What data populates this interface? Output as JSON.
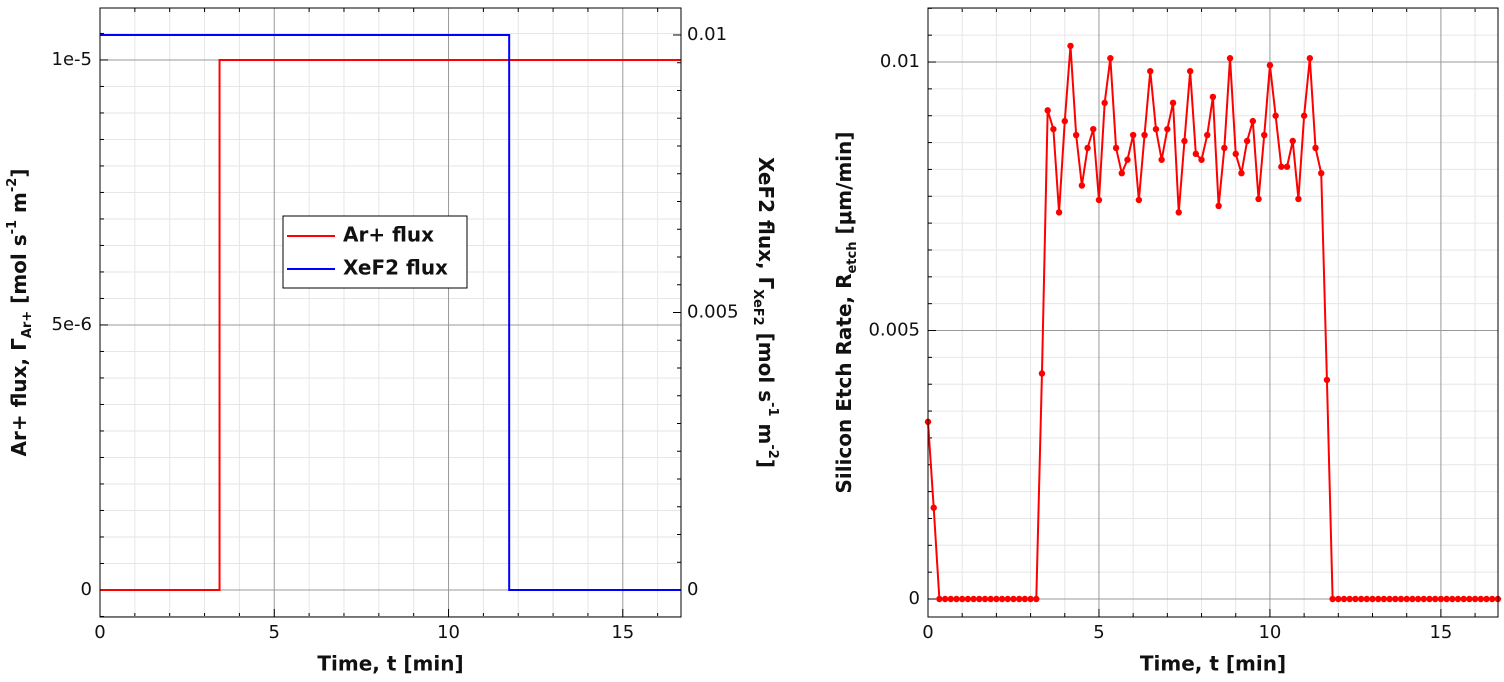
{
  "chart_data": [
    {
      "type": "line",
      "xlabel": "Time, t [min]",
      "ylabel": [
        {
          "text": "Ar+ flux, Γ"
        },
        {
          "text": "Ar+",
          "sub": true
        },
        {
          "text": " [mol s"
        },
        {
          "text": "-1",
          "sup": true
        },
        {
          "text": " m"
        },
        {
          "text": "-2",
          "sup": true
        },
        {
          "text": "]"
        }
      ],
      "y2label": [
        {
          "text": "XeF2 flux, Γ"
        },
        {
          "text": "XeF2",
          "sub": true
        },
        {
          "text": " [mol s"
        },
        {
          "text": "-1",
          "sup": true
        },
        {
          "text": " m"
        },
        {
          "text": "-2",
          "sup": true
        },
        {
          "text": "]"
        }
      ],
      "xlim": [
        0,
        16.67
      ],
      "xticks": [
        0,
        5,
        10,
        15
      ],
      "ylim": [
        -5.1e-07,
        1.098e-05
      ],
      "yticks": [
        0,
        {
          "value": 5e-06,
          "label": "5e-6"
        },
        {
          "value": 1e-05,
          "label": "1e-5"
        }
      ],
      "y2lim": [
        -0.000486,
        0.010486
      ],
      "y2ticks": [
        0,
        0.005,
        0.01
      ],
      "grid": true,
      "minor_divisions": [
        5,
        10
      ],
      "legend": true,
      "series": [
        {
          "name": "Ar+ flux",
          "color": "#ff0000",
          "x": [
            0,
            3.43,
            3.43,
            16.67
          ],
          "values": [
            0,
            0,
            1e-05,
            1e-05
          ]
        },
        {
          "name": "XeF2 flux",
          "color": "#0000ff",
          "axis": "y2",
          "x": [
            0,
            11.74,
            11.74,
            16.67
          ],
          "values": [
            0.01,
            0.01,
            0,
            0
          ]
        }
      ]
    },
    {
      "type": "line",
      "markers": true,
      "xlabel": "Time, t [min]",
      "ylabel": [
        {
          "text": "Silicon Etch Rate, R"
        },
        {
          "text": "etch",
          "sub": true
        },
        {
          "text": " [μm/min]"
        }
      ],
      "xlim": [
        0,
        16.67
      ],
      "xticks": [
        0,
        5,
        10,
        15
      ],
      "ylim": [
        -0.000335,
        0.011006
      ],
      "yticks": [
        0,
        0.005,
        0.01
      ],
      "grid": true,
      "minor_divisions": [
        5,
        10
      ],
      "x": [
        0,
        0.167,
        0.333,
        0.5,
        0.667,
        0.833,
        1,
        1.167,
        1.333,
        1.5,
        1.667,
        1.833,
        2,
        2.167,
        2.333,
        2.5,
        2.667,
        2.833,
        3,
        3.167,
        3.333,
        3.5,
        3.667,
        3.833,
        4,
        4.167,
        4.333,
        4.5,
        4.667,
        4.833,
        5,
        5.167,
        5.333,
        5.5,
        5.667,
        5.833,
        6,
        6.167,
        6.333,
        6.5,
        6.667,
        6.833,
        7,
        7.167,
        7.333,
        7.5,
        7.667,
        7.833,
        8,
        8.167,
        8.333,
        8.5,
        8.667,
        8.833,
        9,
        9.167,
        9.333,
        9.5,
        9.667,
        9.833,
        10,
        10.167,
        10.333,
        10.5,
        10.667,
        10.833,
        11,
        11.167,
        11.333,
        11.5,
        11.667,
        11.833,
        12,
        12.167,
        12.333,
        12.5,
        12.667,
        12.833,
        13,
        13.167,
        13.333,
        13.5,
        13.667,
        13.833,
        14,
        14.167,
        14.333,
        14.5,
        14.667,
        14.833,
        15,
        15.167,
        15.333,
        15.5,
        15.667,
        15.833,
        16,
        16.167,
        16.333,
        16.5,
        16.667
      ],
      "series": [
        {
          "color": "#ff0000",
          "values": [
            0.0033,
            0.0017,
            0,
            0,
            0,
            0,
            0,
            0,
            0,
            0,
            0,
            0,
            0,
            0,
            0,
            0,
            0,
            0,
            0,
            0,
            0.0042,
            0.0091,
            0.00875,
            0.0072,
            0.0089,
            0.0103,
            0.00864,
            0.0077,
            0.0084,
            0.00875,
            0.00743,
            0.00924,
            0.01007,
            0.0084,
            0.00793,
            0.00818,
            0.00864,
            0.00743,
            0.00864,
            0.00983,
            0.00875,
            0.00818,
            0.00875,
            0.00924,
            0.0072,
            0.00853,
            0.00983,
            0.00829,
            0.00818,
            0.00864,
            0.00935,
            0.00732,
            0.0084,
            0.01007,
            0.00829,
            0.00793,
            0.00853,
            0.0089,
            0.00745,
            0.00864,
            0.00994,
            0.009,
            0.00805,
            0.00805,
            0.00853,
            0.00745,
            0.009,
            0.01007,
            0.0084,
            0.00793,
            0.00408,
            0,
            0,
            0,
            0,
            0,
            0,
            0,
            0,
            0,
            0,
            0,
            0,
            0,
            0,
            0,
            0,
            0,
            0,
            0,
            0,
            0,
            0,
            0,
            0,
            0,
            0,
            0,
            0,
            0,
            0
          ]
        }
      ]
    }
  ]
}
